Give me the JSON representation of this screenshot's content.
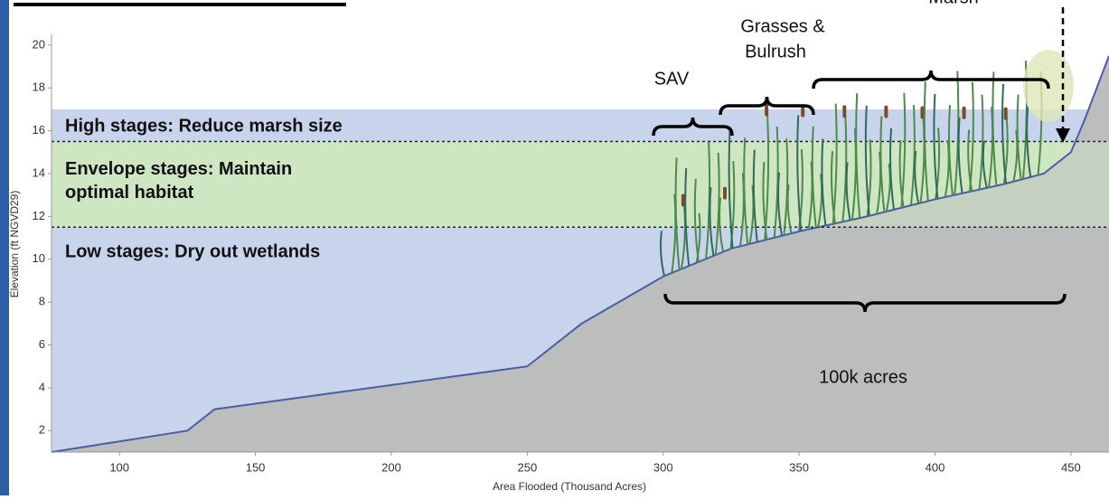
{
  "chart_data": {
    "type": "area",
    "x_label": "Area Flooded (Thousand Acres)",
    "y_label": "Elevation (ft NGVD29)",
    "x": [
      75,
      125,
      135,
      250,
      270,
      300,
      325,
      350,
      375,
      400,
      425,
      440,
      450,
      455,
      464
    ],
    "values": [
      1,
      2,
      3,
      5,
      7,
      9.2,
      10.5,
      11.3,
      12,
      12.8,
      13.5,
      14,
      15,
      16.5,
      19.5
    ],
    "line_color": "#4a5ea8",
    "fill_color": "#bcbdbd",
    "xlim": [
      75,
      464
    ],
    "ylim": [
      1,
      20.5
    ],
    "xticks": [
      100,
      150,
      200,
      250,
      300,
      350,
      400,
      450
    ],
    "yticks": [
      2,
      4,
      6,
      8,
      10,
      12,
      14,
      16,
      18,
      20
    ],
    "bands": [
      {
        "label": "High stages: Reduce marsh size",
        "from": 15.5,
        "to": 17,
        "color": "#c8d4ec"
      },
      {
        "label": "Envelope stages: Maintain optimal habitat",
        "from": 11.5,
        "to": 15.5,
        "color": "#cfe6c4"
      },
      {
        "label": "Low stages: Dry out wetlands",
        "from": 1,
        "to": 11.5,
        "color": "#c8d4ec"
      }
    ],
    "annotations": [
      "SAV",
      "Grasses &",
      "Bulrush",
      "Marsh",
      "100k acres"
    ]
  }
}
